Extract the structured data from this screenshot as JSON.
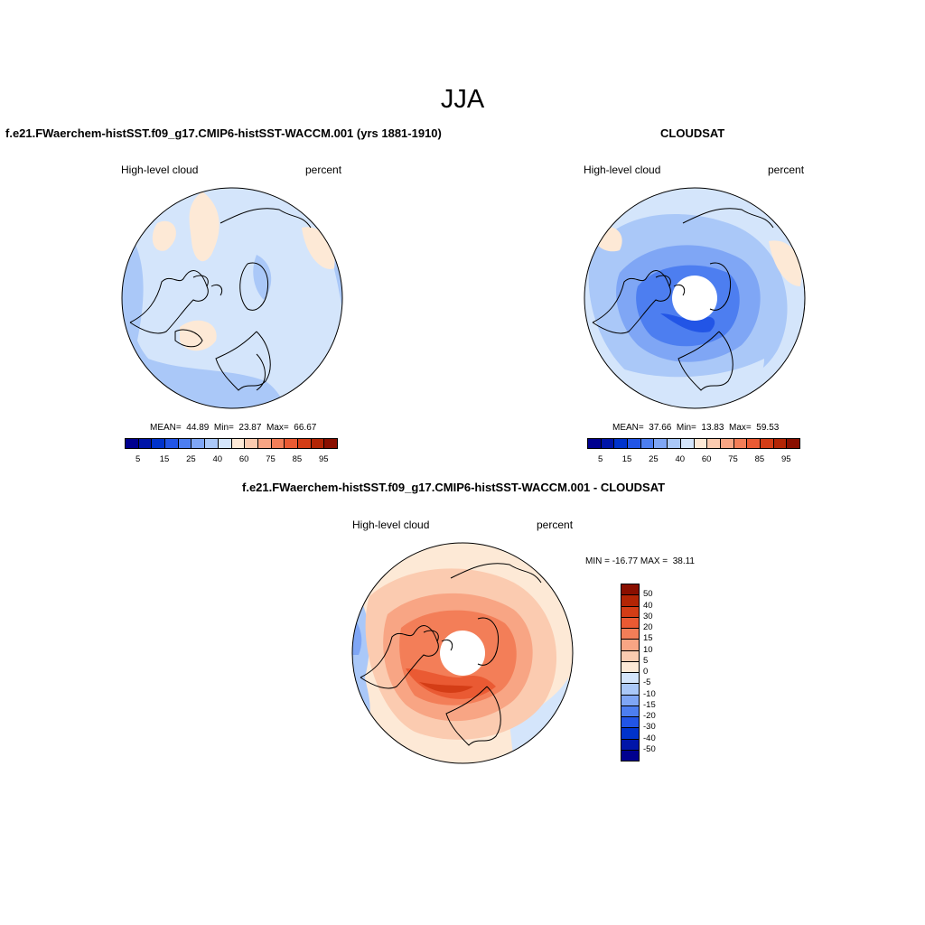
{
  "title": "JJA",
  "panels": {
    "model": {
      "title": "f.e21.FWaerchem-histSST.f09_g17.CMIP6-histSST-WACCM.001 (yrs 1881-1910)",
      "left_label": "High-level cloud",
      "right_label": "percent",
      "stats": {
        "mean_label": "MEAN=",
        "mean": "44.89",
        "min_label": "Min=",
        "min": "23.87",
        "max_label": "Max=",
        "max": "66.67"
      }
    },
    "obs": {
      "title": "CLOUDSAT",
      "left_label": "High-level cloud",
      "right_label": "percent",
      "stats": {
        "mean_label": "MEAN=",
        "mean": "37.66",
        "min_label": "Min=",
        "min": "13.83",
        "max_label": "Max=",
        "max": "59.53"
      }
    },
    "diff": {
      "title": "f.e21.FWaerchem-histSST.f09_g17.CMIP6-histSST-WACCM.001 - CLOUDSAT",
      "left_label": "High-level cloud",
      "right_label": "percent",
      "minmax": "MIN = -16.77 MAX =  38.11"
    }
  },
  "colorbar_abs": {
    "colors": [
      "#00008f",
      "#0015a8",
      "#0033cc",
      "#2255e6",
      "#4d7ef0",
      "#7fa6f5",
      "#aac8f8",
      "#d4e5fb",
      "#fde9d6",
      "#fbcbb0",
      "#f8a584",
      "#f37e58",
      "#ea5a33",
      "#d43d16",
      "#b32505",
      "#8a0f00"
    ],
    "labels": [
      "5",
      "15",
      "25",
      "40",
      "60",
      "75",
      "85",
      "95"
    ]
  },
  "colorbar_diff": {
    "colors": [
      "#8a0f00",
      "#b32505",
      "#d43d16",
      "#ea5a33",
      "#f37e58",
      "#f8a584",
      "#fbcbb0",
      "#fde9d6",
      "#d4e5fb",
      "#aac8f8",
      "#7fa6f5",
      "#4d7ef0",
      "#2255e6",
      "#0033cc",
      "#0015a8",
      "#00008f"
    ],
    "labels": [
      "50",
      "40",
      "30",
      "20",
      "15",
      "10",
      "5",
      "0",
      "-5",
      "-10",
      "-15",
      "-20",
      "-30",
      "-40",
      "-50"
    ]
  },
  "map_colors": {
    "pale_blue": "#d4e5fb",
    "light_blue": "#aac8f8",
    "mid_blue": "#7fa6f5",
    "blue": "#4d7ef0",
    "deep_blue": "#2255e6",
    "peach": "#fde9d6",
    "salmon": "#fbcbb0",
    "orange": "#f8a584",
    "red_orange": "#f37e58",
    "red": "#ea5a33",
    "dark_red": "#d43d16"
  }
}
